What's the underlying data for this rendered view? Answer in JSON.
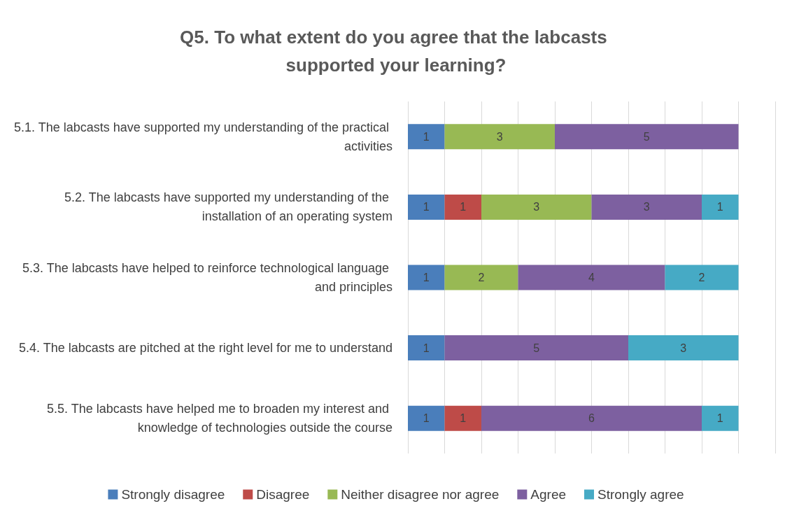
{
  "chart_data": {
    "type": "bar",
    "orientation": "horizontal",
    "stacked": true,
    "title": "Q5. To what extent do you agree that the labcasts supported your learning?",
    "categories": [
      "5.1. The labcasts have supported my understanding of the practical activities",
      "5.2. The labcasts have supported my understanding of the installation of an operating system",
      "5.3. The labcasts have helped to reinforce technological language and principles",
      "5.4. The labcasts are pitched at the right level for me to understand",
      "5.5. The labcasts have helped me to broaden my interest and knowledge of technologies outside the course"
    ],
    "series": [
      {
        "name": "Strongly disagree",
        "color": "#4a7ebb",
        "values": [
          1,
          1,
          1,
          1,
          1
        ]
      },
      {
        "name": "Disagree",
        "color": "#be4b48",
        "values": [
          null,
          1,
          null,
          null,
          1
        ]
      },
      {
        "name": "Neither disagree nor agree",
        "color": "#98b954",
        "values": [
          3,
          3,
          2,
          null,
          null
        ]
      },
      {
        "name": "Agree",
        "color": "#7d60a0",
        "values": [
          5,
          3,
          4,
          5,
          6
        ]
      },
      {
        "name": "Strongly agree",
        "color": "#46aac5",
        "values": [
          null,
          1,
          2,
          3,
          1
        ]
      }
    ],
    "xlim": [
      0,
      10
    ],
    "xticks": [
      {
        "value": 0,
        "label": null
      },
      {
        "value": 1,
        "label": null
      },
      {
        "value": 2,
        "label": null
      },
      {
        "value": 3,
        "label": null
      },
      {
        "value": 4,
        "label": null
      },
      {
        "value": 5,
        "label": null
      },
      {
        "value": 6,
        "label": null
      },
      {
        "value": 7,
        "label": null
      },
      {
        "value": 8,
        "label": null
      },
      {
        "value": 9,
        "label": null
      },
      {
        "value": 10,
        "label": null
      }
    ],
    "tick_labels": "y",
    "grid": "x",
    "legend": "bottom",
    "data_labels": true
  }
}
